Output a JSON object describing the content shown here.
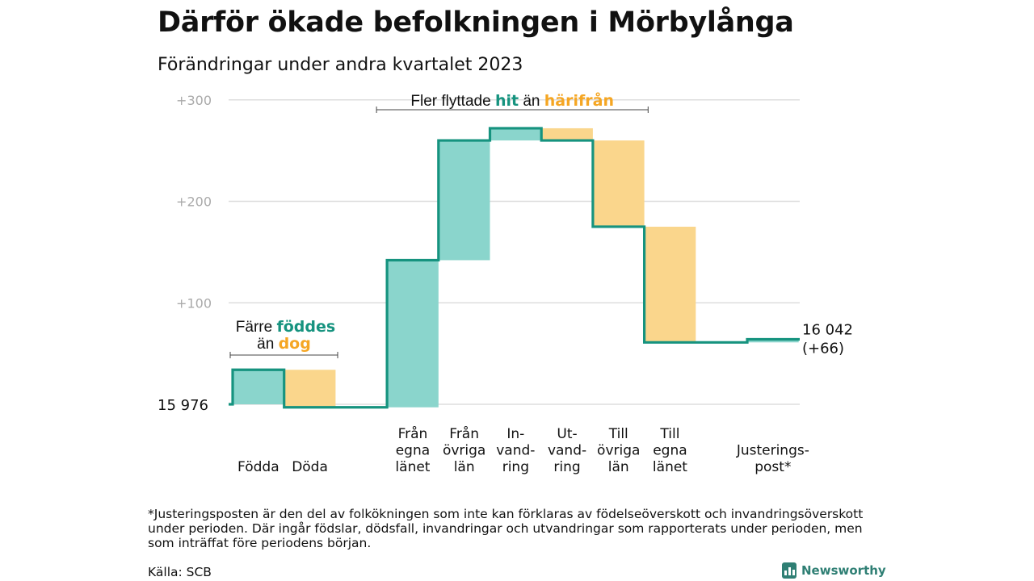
{
  "title": "Därför ökade befolkningen i Mörbylånga",
  "subtitle": "Förändringar under andra kvartalet 2023",
  "colors": {
    "in": "#8ad5cc",
    "out": "#fad68c",
    "line": "#16937f",
    "accent_in": "#16937f",
    "accent_out": "#f5a623",
    "grid": "#dddddd"
  },
  "chart_data": {
    "type": "waterfall",
    "start_label": "15  976",
    "start_value": 15976,
    "end_label": "16 042",
    "end_change_label": "(+66)",
    "ylim": [
      -8,
      310
    ],
    "yticks": [
      {
        "value": 100,
        "label": "+100"
      },
      {
        "value": 200,
        "label": "+200"
      },
      {
        "value": 300,
        "label": "+300"
      }
    ],
    "steps": [
      {
        "label": [
          "Födda"
        ],
        "value": 34,
        "kind": "in"
      },
      {
        "label": [
          "Döda"
        ],
        "value": -37,
        "kind": "out"
      },
      {
        "label": [],
        "value": 0,
        "kind": "none"
      },
      {
        "label": [
          "Från",
          "egna",
          "länet"
        ],
        "value": 145,
        "kind": "in"
      },
      {
        "label": [
          "Från",
          "övriga",
          "län"
        ],
        "value": 118,
        "kind": "in"
      },
      {
        "label": [
          "In-",
          "vand-",
          "ring"
        ],
        "value": 12,
        "kind": "in"
      },
      {
        "label": [
          "Ut-",
          "vand-",
          "ring"
        ],
        "value": -12,
        "kind": "out"
      },
      {
        "label": [
          "Till",
          "övriga",
          "län"
        ],
        "value": -85,
        "kind": "out"
      },
      {
        "label": [
          "Till",
          "egna",
          "länet"
        ],
        "value": -114,
        "kind": "out"
      },
      {
        "label": [],
        "value": 0,
        "kind": "none"
      },
      {
        "label": [
          "Justerings-",
          "post*"
        ],
        "value": 3,
        "kind": "in"
      }
    ],
    "annotations": {
      "migration": {
        "before": "Fler flyttade",
        "in_word": "hit",
        "middle": "än",
        "out_word": "härifrån"
      },
      "births": {
        "line1_before": "Färre",
        "line1_word": "föddes",
        "line2_before": "än",
        "line2_word": "dog"
      }
    }
  },
  "footnote": "*Justeringsposten är den del av folkökningen som inte kan förklaras av födelseöverskott och invandringsöverskott under perioden. Där ingår födslar, dödsfall, invandringar och utvandringar som rapporterats under perioden, men som inträffat före periodens början.",
  "source": "Källa: SCB",
  "brand": "Newsworthy"
}
